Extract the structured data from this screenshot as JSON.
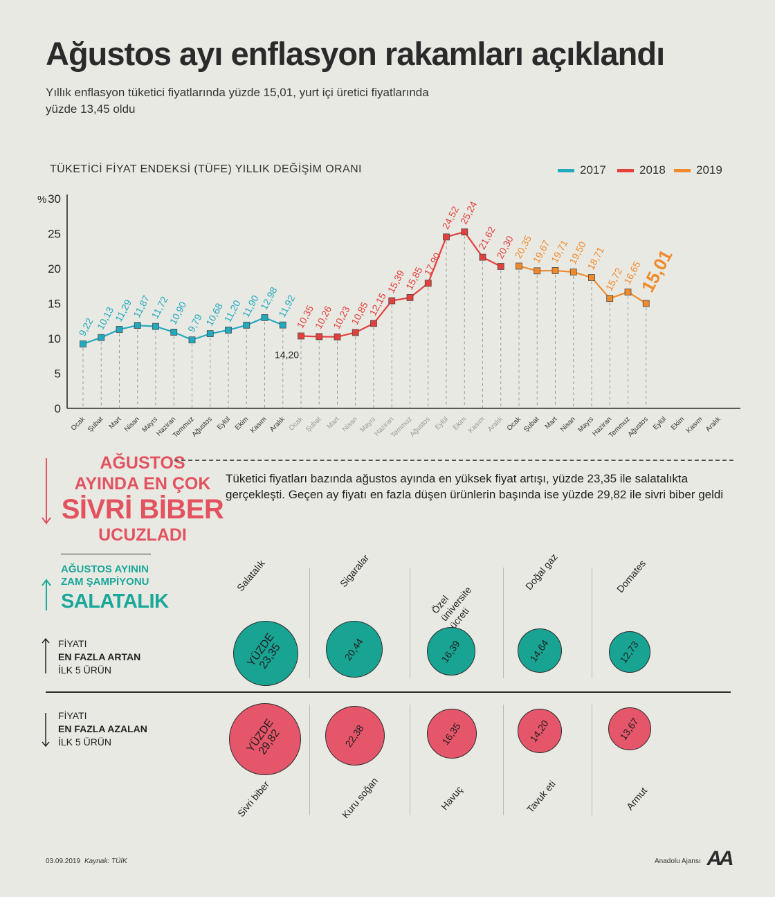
{
  "title": "Ağustos ayı enflasyon rakamları açıklandı",
  "subtitle": "Yıllık enflasyon tüketici fiyatlarında yüzde 15,01, yurt içi üretici fiyatlarında yüzde 13,45 oldu",
  "colors": {
    "y2017": "#22a9bf",
    "y2018": "#e3403c",
    "y2019": "#f08a2c",
    "teal": "#19a393",
    "red": "#e5566a",
    "background": "#e9e9e3"
  },
  "chart_data": {
    "type": "line",
    "title": "TÜKETİCİ FİYAT ENDEKSİ (TÜFE) YILLIK DEĞİŞİM ORANI",
    "ylabel": "%",
    "ylim": [
      0,
      30
    ],
    "yticks": [
      "0",
      "5",
      "10",
      "15",
      "20",
      "25",
      "30"
    ],
    "ytick_values": [
      0,
      5,
      10,
      15,
      20,
      25,
      30
    ],
    "grid": "dashed vertical lines at each month",
    "months": [
      "Ocak",
      "Şubat",
      "Mart",
      "Nisan",
      "Mayıs",
      "Haziran",
      "Temmuz",
      "Ağustos",
      "Eylül",
      "Ekim",
      "Kasım",
      "Aralık"
    ],
    "series": [
      {
        "name": "2017",
        "color": "#22a9bf",
        "values": [
          9.22,
          10.13,
          11.29,
          11.87,
          11.72,
          10.9,
          9.79,
          10.68,
          11.2,
          11.9,
          12.98,
          11.92
        ],
        "labels": [
          "9,22",
          "10,13",
          "11,29",
          "11,87",
          "11,72",
          "10,90",
          "9,79",
          "10,68",
          "11,20",
          "11,90",
          "12,98",
          "11,92"
        ]
      },
      {
        "name": "2018",
        "color": "#e3403c",
        "values": [
          10.35,
          10.26,
          10.23,
          10.85,
          12.15,
          15.39,
          15.85,
          17.9,
          24.52,
          25.24,
          21.62,
          20.3
        ],
        "labels": [
          "10,35",
          "10,26",
          "10,23",
          "10,85",
          "12,15",
          "15,39",
          "15,85",
          "17,90",
          "24,52",
          "25,24",
          "21,62",
          "20,30"
        ]
      },
      {
        "name": "2019",
        "color": "#f08a2c",
        "values": [
          20.35,
          19.67,
          19.71,
          19.5,
          18.71,
          15.72,
          16.65,
          15.01
        ],
        "labels": [
          "20,35",
          "19,67",
          "19,71",
          "19,50",
          "18,71",
          "15,72",
          "16,65",
          "15,01"
        ]
      }
    ],
    "extra_annotation": "14,20",
    "legend": [
      "2017",
      "2018",
      "2019"
    ],
    "legend_position": "top-right"
  },
  "section_falls": {
    "line1": "AĞUSTOS",
    "line2": "AYINDA EN ÇOK",
    "line3": "SİVRİ BİBER",
    "line4": "UCUZLADI",
    "description": "Tüketici fiyatları bazında ağustos ayında en yüksek fiyat artışı, yüzde 23,35 ile salatalıkta gerçekleşti. Geçen ay fiyatı en fazla düşen ürünlerin başında ise yüzde 29,82 ile sivri biber geldi"
  },
  "champion": {
    "line1": "AĞUSTOS AYININ",
    "line2": "ZAM ŞAMPİYONU",
    "line3": "SALATALIK"
  },
  "rise_label": {
    "line1": "FİYATI",
    "line2": "EN FAZLA ARTAN",
    "line3": "İLK 5 ÜRÜN"
  },
  "fall_label": {
    "line1": "FİYATI",
    "line2": "EN FAZLA AZALAN",
    "line3": "İLK 5 ÜRÜN"
  },
  "rise_items": [
    {
      "name": "Salatalık",
      "prefix": "YÜZDE",
      "value": "23,35",
      "num": 23.35
    },
    {
      "name": "Sigaralar",
      "prefix": "",
      "value": "20,44",
      "num": 20.44
    },
    {
      "name": "Özel üniversite ücreti",
      "prefix": "",
      "value": "16,39",
      "num": 16.39
    },
    {
      "name": "Doğal gaz",
      "prefix": "",
      "value": "14,64",
      "num": 14.64
    },
    {
      "name": "Domates",
      "prefix": "",
      "value": "12,73",
      "num": 12.73
    }
  ],
  "fall_items": [
    {
      "name": "Sivri biber",
      "prefix": "YÜZDE",
      "value": "29,82",
      "num": 29.82
    },
    {
      "name": "Kuru soğan",
      "prefix": "",
      "value": "22,38",
      "num": 22.38
    },
    {
      "name": "Havuç",
      "prefix": "",
      "value": "16,35",
      "num": 16.35
    },
    {
      "name": "Tavuk eti",
      "prefix": "",
      "value": "14,20",
      "num": 14.2
    },
    {
      "name": "Armut",
      "prefix": "",
      "value": "13,67",
      "num": 13.67
    }
  ],
  "footer": {
    "date": "03.09.2019",
    "source": "Kaynak: TÜİK",
    "agency": "Anadolu Ajansı",
    "logo_text": "AA"
  }
}
